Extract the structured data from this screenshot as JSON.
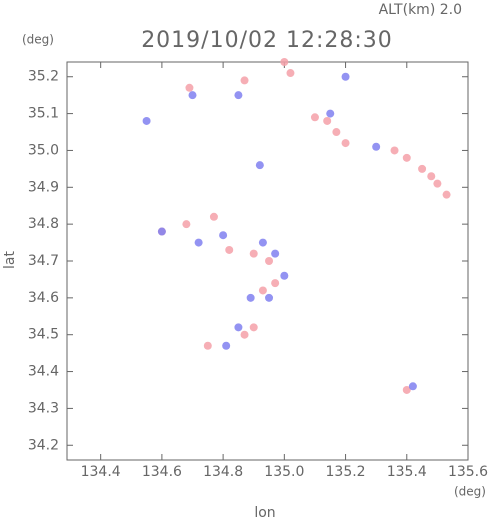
{
  "chart_data": {
    "type": "scatter",
    "title": "2019/10/02 12:28:30",
    "subtitle": "ALT(km) 2.0",
    "x_label": "lon",
    "y_label": "lat",
    "x_unit": "(deg)",
    "y_unit": "(deg)",
    "xlim": [
      134.29,
      135.6
    ],
    "ylim": [
      34.16,
      35.24
    ],
    "xticks": [
      134.4,
      134.6,
      134.8,
      {
        "value": 135,
        "label": "135.0"
      },
      135.2,
      135.4,
      135.6
    ],
    "yticks": [
      34.2,
      34.3,
      34.4,
      34.5,
      34.6,
      34.7,
      34.8,
      34.9,
      {
        "value": 35,
        "label": "35.0"
      },
      35.1,
      35.2
    ],
    "series": [
      {
        "color": "#f4a0a8",
        "x": [
          134.69,
          134.87,
          135.0,
          135.02,
          135.1,
          135.14,
          135.17,
          135.2,
          135.36,
          135.4,
          135.45,
          135.48,
          135.5,
          135.53,
          134.68,
          134.77,
          134.82,
          134.9,
          134.95,
          134.97,
          134.93,
          134.87,
          134.9,
          135.4,
          134.75,
          134.6
        ],
        "values": [
          35.17,
          35.19,
          35.24,
          35.21,
          35.09,
          35.08,
          35.05,
          35.02,
          35.0,
          34.98,
          34.95,
          34.93,
          34.91,
          34.88,
          34.8,
          34.82,
          34.73,
          34.72,
          34.7,
          34.64,
          34.62,
          34.5,
          34.52,
          34.35,
          34.47,
          34.78
        ]
      },
      {
        "color": "#8080f0",
        "x": [
          134.7,
          134.55,
          134.85,
          134.92,
          134.6,
          134.72,
          134.8,
          134.93,
          134.97,
          135.0,
          134.95,
          134.89,
          134.85,
          134.81,
          135.42,
          135.2,
          135.15,
          135.3
        ],
        "values": [
          35.15,
          35.08,
          35.15,
          34.96,
          34.78,
          34.75,
          34.77,
          34.75,
          34.72,
          34.66,
          34.6,
          34.6,
          34.52,
          34.47,
          34.36,
          35.2,
          35.1,
          35.01
        ]
      }
    ]
  }
}
